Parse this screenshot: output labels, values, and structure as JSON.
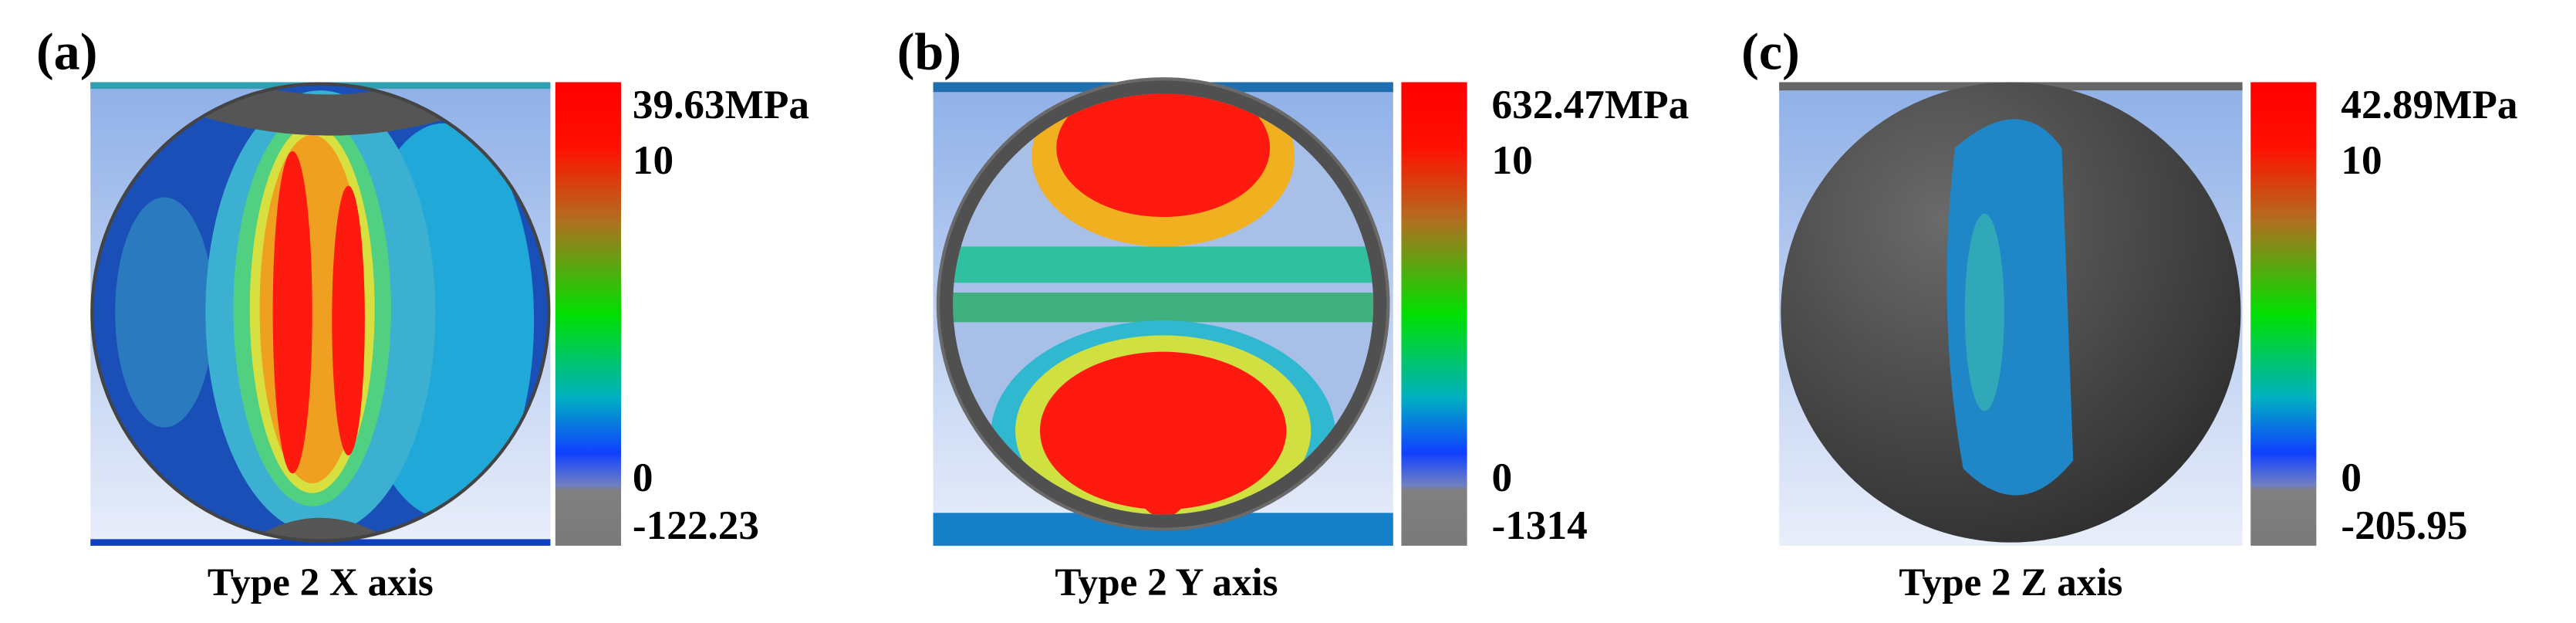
{
  "panels": [
    {
      "label": "(a)",
      "max": "39.63MPa",
      "upper": "10",
      "zero": "0",
      "min": "-122.23",
      "caption": "Type 2 X axis"
    },
    {
      "label": "(b)",
      "max": "632.47MPa",
      "upper": "10",
      "zero": "0",
      "min": "-1314",
      "caption": "Type 2 Y axis"
    },
    {
      "label": "(c)",
      "max": "42.89MPa",
      "upper": "10",
      "zero": "0",
      "min": "-205.95",
      "caption": "Type 2 Z axis"
    }
  ]
}
